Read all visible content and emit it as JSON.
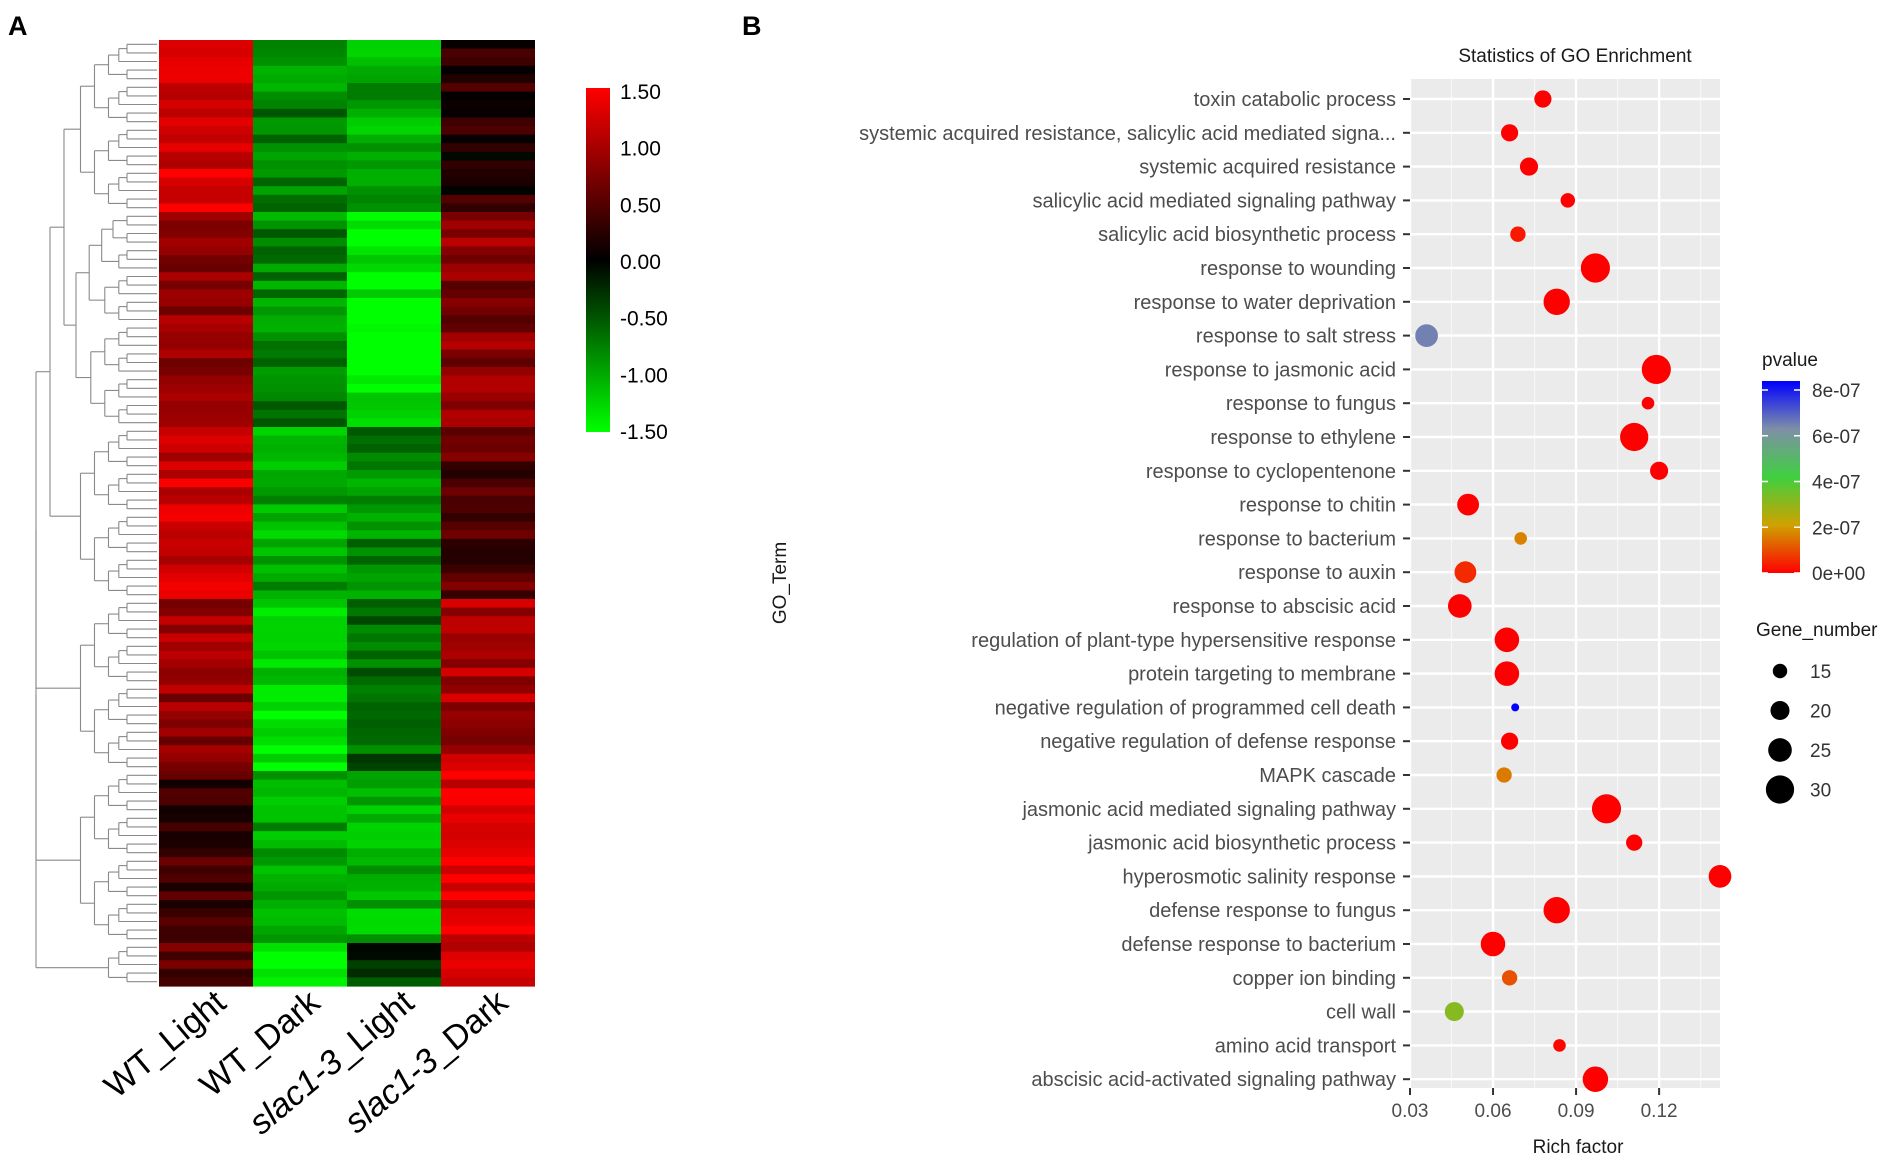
{
  "panel_a": {
    "label": "A",
    "chart_data": {
      "type": "heatmap",
      "columns": [
        "WT_Light",
        "WT_Dark",
        "slac1-3_Light",
        "slac1-3_Dark"
      ],
      "row_count": 110,
      "blocks": [
        {
          "rows": 20,
          "values": [
            1.3,
            -0.8,
            -1.0,
            0.2
          ]
        },
        {
          "rows": 25,
          "values": [
            0.9,
            -0.8,
            -1.4,
            0.8
          ]
        },
        {
          "rows": 20,
          "values": [
            1.2,
            -1.0,
            -0.8,
            0.5
          ]
        },
        {
          "rows": 20,
          "values": [
            0.9,
            -1.3,
            -0.6,
            1.0
          ]
        },
        {
          "rows": 20,
          "values": [
            0.4,
            -1.0,
            -1.0,
            1.35
          ]
        },
        {
          "rows": 5,
          "values": [
            0.5,
            -1.5,
            -0.3,
            1.2
          ]
        }
      ],
      "colorbar": {
        "ticks": [
          "1.50",
          "1.00",
          "0.50",
          "0.00",
          "-0.50",
          "-1.00",
          "-1.50"
        ],
        "range": [
          -1.5,
          1.5
        ],
        "colors": {
          "high": "#ff0000",
          "mid": "#000000",
          "low": "#00ff00"
        }
      }
    }
  },
  "panel_b": {
    "label": "B",
    "chart_data": {
      "type": "scatter",
      "title": "Statistics of GO Enrichment",
      "xlabel": "Rich factor",
      "ylabel": "GO_Term",
      "xlim": [
        0.03,
        0.142
      ],
      "xticks": [
        0.03,
        0.06,
        0.09,
        0.12
      ],
      "xtick_labels": [
        "0.03",
        "0.06",
        "0.09",
        "0.12"
      ],
      "terms": [
        {
          "term": "toxin catabolic process",
          "rich_factor": 0.078,
          "gene_number": 18,
          "pvalue": 0.0
        },
        {
          "term": "systemic acquired resistance, salicylic acid mediated signa...",
          "rich_factor": 0.066,
          "gene_number": 18,
          "pvalue": 0.0
        },
        {
          "term": "systemic acquired resistance",
          "rich_factor": 0.073,
          "gene_number": 19,
          "pvalue": 0.0
        },
        {
          "term": "salicylic acid mediated signaling pathway",
          "rich_factor": 0.087,
          "gene_number": 15,
          "pvalue": 0.0
        },
        {
          "term": "salicylic acid biosynthetic process",
          "rich_factor": 0.069,
          "gene_number": 16,
          "pvalue": 3e-08
        },
        {
          "term": "response to wounding",
          "rich_factor": 0.097,
          "gene_number": 31,
          "pvalue": 0.0
        },
        {
          "term": "response to water deprivation",
          "rich_factor": 0.083,
          "gene_number": 28,
          "pvalue": 0.0
        },
        {
          "term": "response to salt stress",
          "rich_factor": 0.036,
          "gene_number": 24,
          "pvalue": 6.2e-07
        },
        {
          "term": "response to jasmonic acid",
          "rich_factor": 0.119,
          "gene_number": 31,
          "pvalue": 0.0
        },
        {
          "term": "response to fungus",
          "rich_factor": 0.116,
          "gene_number": 13,
          "pvalue": 0.0
        },
        {
          "term": "response to ethylene",
          "rich_factor": 0.111,
          "gene_number": 30,
          "pvalue": 0.0
        },
        {
          "term": "response to cyclopentenone",
          "rich_factor": 0.12,
          "gene_number": 19,
          "pvalue": 0.0
        },
        {
          "term": "response to chitin",
          "rich_factor": 0.051,
          "gene_number": 23,
          "pvalue": 0.0
        },
        {
          "term": "response to bacterium",
          "rich_factor": 0.07,
          "gene_number": 13,
          "pvalue": 1.6e-07
        },
        {
          "term": "response to auxin",
          "rich_factor": 0.05,
          "gene_number": 23,
          "pvalue": 5e-08
        },
        {
          "term": "response to abscisic acid",
          "rich_factor": 0.048,
          "gene_number": 25,
          "pvalue": 0.0
        },
        {
          "term": "regulation of plant-type hypersensitive response",
          "rich_factor": 0.065,
          "gene_number": 26,
          "pvalue": 0.0
        },
        {
          "term": "protein targeting to membrane",
          "rich_factor": 0.065,
          "gene_number": 26,
          "pvalue": 0.0
        },
        {
          "term": "negative regulation of programmed cell death",
          "rich_factor": 0.068,
          "gene_number": 8,
          "pvalue": 8e-07
        },
        {
          "term": "negative regulation of defense response",
          "rich_factor": 0.066,
          "gene_number": 18,
          "pvalue": 0.0
        },
        {
          "term": "MAPK cascade",
          "rich_factor": 0.064,
          "gene_number": 16,
          "pvalue": 1.5e-07
        },
        {
          "term": "jasmonic acid mediated signaling pathway",
          "rich_factor": 0.101,
          "gene_number": 31,
          "pvalue": 0.0
        },
        {
          "term": "jasmonic acid biosynthetic process",
          "rich_factor": 0.111,
          "gene_number": 17,
          "pvalue": 0.0
        },
        {
          "term": "hyperosmotic salinity response",
          "rich_factor": 0.142,
          "gene_number": 24,
          "pvalue": 0.0
        },
        {
          "term": "defense response to fungus",
          "rich_factor": 0.083,
          "gene_number": 28,
          "pvalue": 0.0
        },
        {
          "term": "defense response to bacterium",
          "rich_factor": 0.06,
          "gene_number": 26,
          "pvalue": 0.0
        },
        {
          "term": "copper ion binding",
          "rich_factor": 0.066,
          "gene_number": 16,
          "pvalue": 1e-07
        },
        {
          "term": "cell wall",
          "rich_factor": 0.046,
          "gene_number": 20,
          "pvalue": 3e-07
        },
        {
          "term": "amino acid transport",
          "rich_factor": 0.084,
          "gene_number": 13,
          "pvalue": 1e-08
        },
        {
          "term": "abscisic acid-activated signaling pathway",
          "rich_factor": 0.097,
          "gene_number": 27,
          "pvalue": 0.0
        }
      ],
      "legend_pvalue": {
        "title": "pvalue",
        "range": [
          0,
          8e-07
        ],
        "tick_values": [
          8e-07,
          6e-07,
          4e-07,
          2e-07,
          0
        ],
        "tick_labels": [
          "8e-07",
          "6e-07",
          "4e-07",
          "2e-07",
          "0e+00"
        ]
      },
      "legend_gene_number": {
        "title": "Gene_number",
        "sizes": [
          15,
          20,
          25,
          30
        ],
        "labels": [
          "15",
          "20",
          "25",
          "30"
        ]
      }
    }
  }
}
